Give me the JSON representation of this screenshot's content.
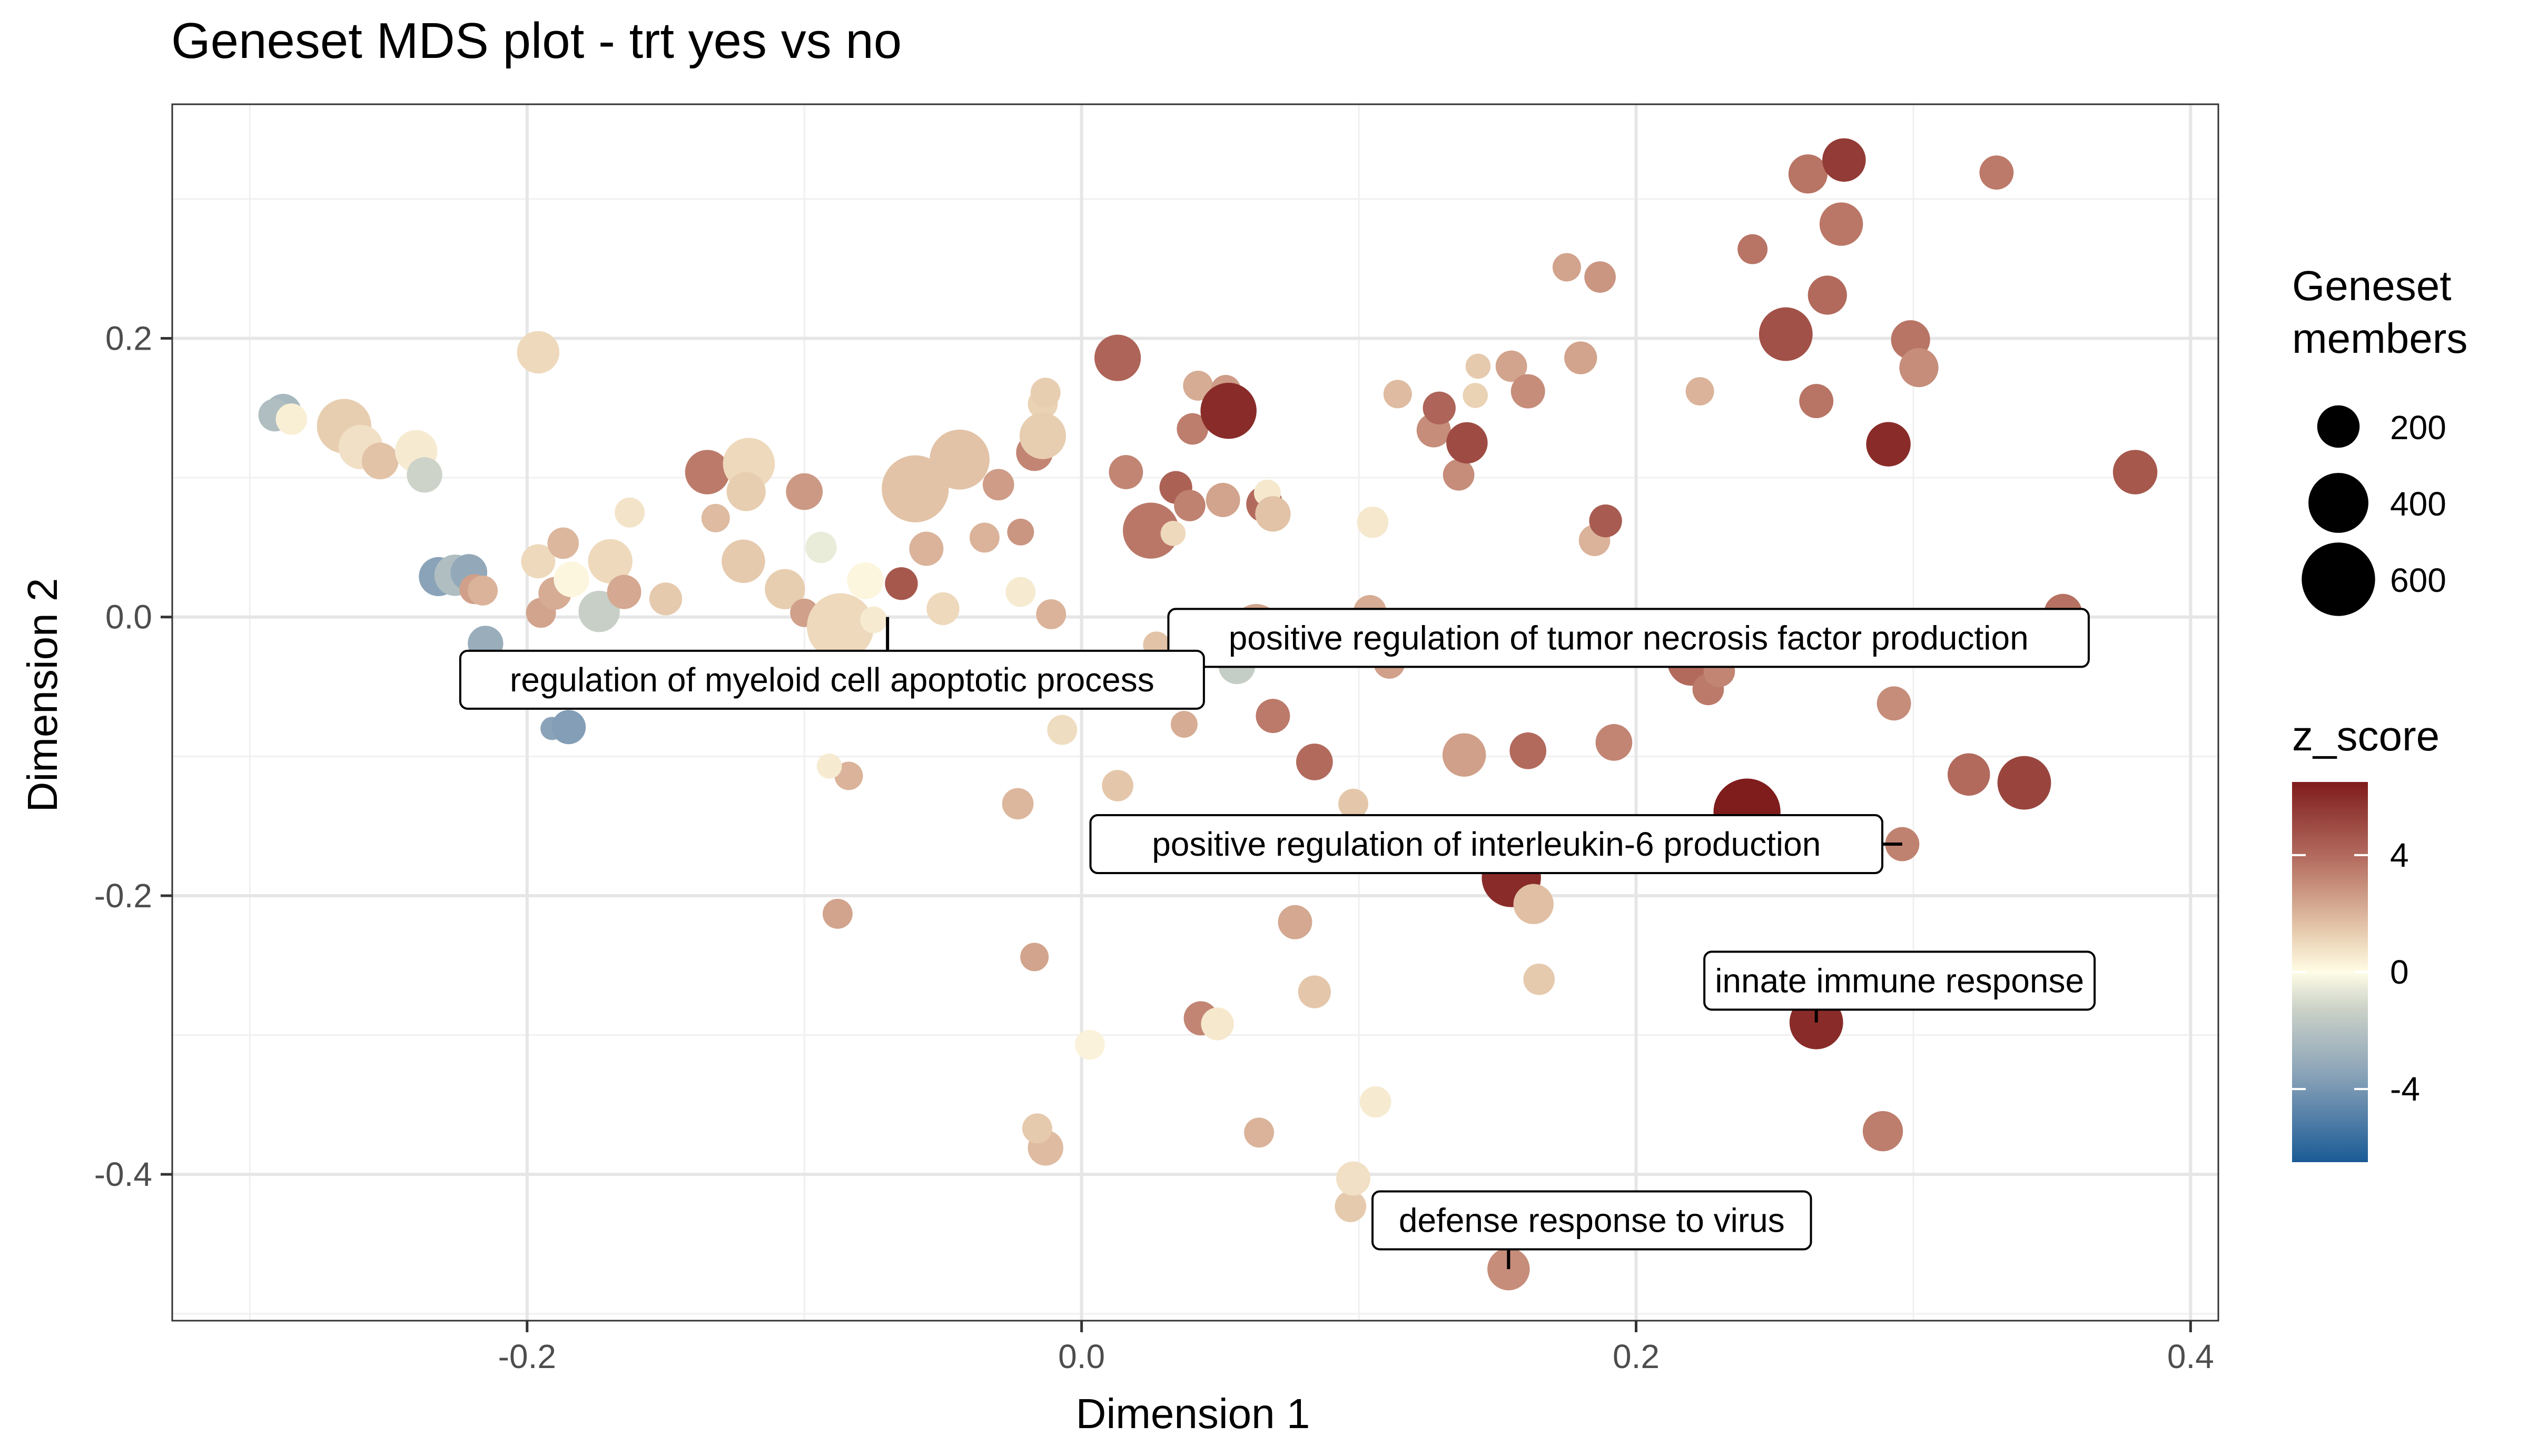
{
  "chart_data": {
    "type": "scatter",
    "title": "Geneset MDS plot - trt yes vs no",
    "xlabel": "Dimension 1",
    "ylabel": "Dimension 2",
    "xlim": [
      -0.328,
      0.41
    ],
    "ylim": [
      -0.505,
      0.368
    ],
    "x_ticks": [
      -0.2,
      0.0,
      0.2,
      0.4
    ],
    "x_tick_labels": [
      "-0.2",
      "0.0",
      "0.2",
      "0.4"
    ],
    "y_ticks": [
      -0.4,
      -0.2,
      0.0,
      0.2
    ],
    "y_tick_labels": [
      "-0.4",
      "-0.2",
      "0.0",
      "0.2"
    ],
    "grid": true,
    "size_legend": {
      "title": [
        "Geneset",
        "members"
      ],
      "entries": [
        {
          "label": "200",
          "value": 200
        },
        {
          "label": "400",
          "value": 400
        },
        {
          "label": "600",
          "value": 600
        }
      ]
    },
    "color_legend": {
      "title": "z_score",
      "range": [
        -6.5,
        6.5
      ],
      "ticks": [
        4,
        0,
        -4
      ],
      "tick_labels": [
        "4",
        "0",
        "-4"
      ],
      "low_color": "#1a5a96",
      "mid_color": "#fffde6",
      "high_color": "#7f1c1c",
      "gradient_stops": [
        "#7f1c1c",
        "#b2665a",
        "#e8c8a8",
        "#fffde6",
        "#c8d0c8",
        "#8aa3b8",
        "#1a5a96"
      ]
    },
    "points": [
      {
        "x": -0.288,
        "y": 0.147,
        "z": -2.5,
        "n": 150
      },
      {
        "x": -0.291,
        "y": 0.145,
        "z": -2.2,
        "n": 120
      },
      {
        "x": -0.285,
        "y": 0.142,
        "z": 0.4,
        "n": 110
      },
      {
        "x": -0.266,
        "y": 0.137,
        "z": 1.3,
        "n": 330
      },
      {
        "x": -0.26,
        "y": 0.122,
        "z": 0.8,
        "n": 220
      },
      {
        "x": -0.253,
        "y": 0.112,
        "z": 1.6,
        "n": 150
      },
      {
        "x": -0.24,
        "y": 0.119,
        "z": 0.5,
        "n": 200
      },
      {
        "x": -0.237,
        "y": 0.102,
        "z": -1.2,
        "n": 140
      },
      {
        "x": -0.232,
        "y": 0.029,
        "z": -3.5,
        "n": 170
      },
      {
        "x": -0.226,
        "y": 0.03,
        "z": -2.2,
        "n": 190
      },
      {
        "x": -0.221,
        "y": 0.032,
        "z": -3.2,
        "n": 150
      },
      {
        "x": -0.219,
        "y": 0.02,
        "z": 2.5,
        "n": 100
      },
      {
        "x": -0.216,
        "y": 0.019,
        "z": 2.0,
        "n": 100
      },
      {
        "x": -0.215,
        "y": -0.019,
        "z": -3.0,
        "n": 140
      },
      {
        "x": -0.196,
        "y": 0.19,
        "z": 1.0,
        "n": 200
      },
      {
        "x": -0.196,
        "y": 0.04,
        "z": 1.0,
        "n": 130
      },
      {
        "x": -0.195,
        "y": 0.003,
        "z": 2.4,
        "n": 100
      },
      {
        "x": -0.191,
        "y": -0.08,
        "z": -3.5,
        "n": 60
      },
      {
        "x": -0.19,
        "y": 0.017,
        "z": 2.2,
        "n": 120
      },
      {
        "x": -0.187,
        "y": 0.053,
        "z": 1.9,
        "n": 110
      },
      {
        "x": -0.185,
        "y": -0.079,
        "z": -3.7,
        "n": 130
      },
      {
        "x": -0.184,
        "y": 0.027,
        "z": 0.2,
        "n": 140
      },
      {
        "x": -0.174,
        "y": 0.004,
        "z": -1.4,
        "n": 190
      },
      {
        "x": -0.17,
        "y": 0.04,
        "z": 1.0,
        "n": 220
      },
      {
        "x": -0.165,
        "y": 0.018,
        "z": 2.3,
        "n": 130
      },
      {
        "x": -0.163,
        "y": 0.075,
        "z": 0.7,
        "n": 100
      },
      {
        "x": -0.15,
        "y": 0.013,
        "z": 1.4,
        "n": 120
      },
      {
        "x": -0.135,
        "y": 0.104,
        "z": 3.5,
        "n": 220
      },
      {
        "x": -0.132,
        "y": 0.071,
        "z": 1.8,
        "n": 90
      },
      {
        "x": -0.122,
        "y": 0.04,
        "z": 1.4,
        "n": 210
      },
      {
        "x": -0.12,
        "y": 0.11,
        "z": 1.0,
        "n": 300
      },
      {
        "x": -0.121,
        "y": 0.09,
        "z": 1.3,
        "n": 170
      },
      {
        "x": -0.107,
        "y": 0.02,
        "z": 1.3,
        "n": 180
      },
      {
        "x": -0.1,
        "y": 0.003,
        "z": 2.5,
        "n": 90
      },
      {
        "x": -0.1,
        "y": 0.09,
        "z": 2.7,
        "n": 150
      },
      {
        "x": -0.094,
        "y": 0.05,
        "z": -0.5,
        "n": 110
      },
      {
        "x": -0.087,
        "y": -0.007,
        "z": 1.0,
        "n": 500
      },
      {
        "x": -0.078,
        "y": 0.026,
        "z": 0.2,
        "n": 150
      },
      {
        "x": -0.075,
        "y": -0.002,
        "z": 0.5,
        "n": 80
      },
      {
        "x": -0.065,
        "y": 0.024,
        "z": 4.6,
        "n": 120
      },
      {
        "x": -0.06,
        "y": 0.092,
        "z": 1.6,
        "n": 500
      },
      {
        "x": -0.056,
        "y": 0.049,
        "z": 2.0,
        "n": 130
      },
      {
        "x": -0.05,
        "y": 0.006,
        "z": 1.0,
        "n": 120
      },
      {
        "x": -0.044,
        "y": 0.113,
        "z": 1.6,
        "n": 400
      },
      {
        "x": -0.035,
        "y": 0.057,
        "z": 2.0,
        "n": 100
      },
      {
        "x": -0.03,
        "y": 0.095,
        "z": 2.6,
        "n": 110
      },
      {
        "x": -0.023,
        "y": -0.134,
        "z": 1.9,
        "n": 110
      },
      {
        "x": -0.022,
        "y": 0.018,
        "z": 0.5,
        "n": 100
      },
      {
        "x": -0.022,
        "y": 0.061,
        "z": 2.8,
        "n": 80
      },
      {
        "x": -0.017,
        "y": 0.118,
        "z": 3.2,
        "n": 150
      },
      {
        "x": -0.014,
        "y": 0.153,
        "z": 1.2,
        "n": 100
      },
      {
        "x": -0.014,
        "y": 0.13,
        "z": 1.3,
        "n": 240
      },
      {
        "x": -0.013,
        "y": 0.161,
        "z": 1.3,
        "n": 100
      },
      {
        "x": -0.013,
        "y": -0.381,
        "z": 1.8,
        "n": 140
      },
      {
        "x": -0.016,
        "y": -0.367,
        "z": 1.4,
        "n": 100
      },
      {
        "x": -0.017,
        "y": -0.244,
        "z": 2.4,
        "n": 90
      },
      {
        "x": -0.011,
        "y": 0.002,
        "z": 2.0,
        "n": 100
      },
      {
        "x": -0.007,
        "y": -0.081,
        "z": 0.9,
        "n": 100
      },
      {
        "x": -0.088,
        "y": -0.213,
        "z": 2.4,
        "n": 100
      },
      {
        "x": -0.084,
        "y": -0.114,
        "z": 2.0,
        "n": 90
      },
      {
        "x": -0.091,
        "y": -0.107,
        "z": 0.5,
        "n": 70
      },
      {
        "x": 0.003,
        "y": -0.307,
        "z": 0.3,
        "n": 100
      },
      {
        "x": 0.013,
        "y": 0.186,
        "z": 4.2,
        "n": 240
      },
      {
        "x": 0.016,
        "y": 0.104,
        "z": 3.2,
        "n": 130
      },
      {
        "x": 0.013,
        "y": -0.121,
        "z": 1.5,
        "n": 110
      },
      {
        "x": 0.025,
        "y": 0.062,
        "z": 3.6,
        "n": 350
      },
      {
        "x": 0.027,
        "y": -0.02,
        "z": 1.6,
        "n": 80
      },
      {
        "x": 0.033,
        "y": 0.06,
        "z": 1.0,
        "n": 70
      },
      {
        "x": 0.034,
        "y": 0.093,
        "z": 4.3,
        "n": 120
      },
      {
        "x": 0.037,
        "y": -0.077,
        "z": 2.2,
        "n": 80
      },
      {
        "x": 0.039,
        "y": 0.08,
        "z": 3.3,
        "n": 110
      },
      {
        "x": 0.04,
        "y": 0.135,
        "z": 3.4,
        "n": 110
      },
      {
        "x": 0.042,
        "y": 0.166,
        "z": 2.2,
        "n": 100
      },
      {
        "x": 0.043,
        "y": -0.288,
        "z": 3.2,
        "n": 130
      },
      {
        "x": 0.049,
        "y": -0.292,
        "z": 0.6,
        "n": 120
      },
      {
        "x": 0.051,
        "y": 0.084,
        "z": 2.4,
        "n": 130
      },
      {
        "x": 0.052,
        "y": 0.163,
        "z": 2.6,
        "n": 100
      },
      {
        "x": 0.053,
        "y": 0.148,
        "z": 6.0,
        "n": 350
      },
      {
        "x": 0.056,
        "y": -0.035,
        "z": -1.5,
        "n": 150
      },
      {
        "x": 0.063,
        "y": -0.008,
        "z": 2.4,
        "n": 260
      },
      {
        "x": 0.064,
        "y": -0.37,
        "z": 2.0,
        "n": 100
      },
      {
        "x": 0.066,
        "y": 0.081,
        "z": 4.0,
        "n": 150
      },
      {
        "x": 0.067,
        "y": 0.089,
        "z": 0.6,
        "n": 80
      },
      {
        "x": 0.069,
        "y": 0.074,
        "z": 1.6,
        "n": 140
      },
      {
        "x": 0.069,
        "y": -0.071,
        "z": 3.5,
        "n": 130
      },
      {
        "x": 0.077,
        "y": -0.219,
        "z": 2.3,
        "n": 130
      },
      {
        "x": 0.084,
        "y": -0.269,
        "z": 1.5,
        "n": 120
      },
      {
        "x": 0.084,
        "y": -0.104,
        "z": 4.0,
        "n": 150
      },
      {
        "x": 0.091,
        "y": -0.019,
        "z": 2.4,
        "n": 90
      },
      {
        "x": 0.097,
        "y": -0.423,
        "z": 1.4,
        "n": 110
      },
      {
        "x": 0.098,
        "y": -0.403,
        "z": 0.8,
        "n": 130
      },
      {
        "x": 0.098,
        "y": -0.134,
        "z": 1.5,
        "n": 100
      },
      {
        "x": 0.104,
        "y": 0.004,
        "z": 2.2,
        "n": 120
      },
      {
        "x": 0.105,
        "y": 0.068,
        "z": 0.6,
        "n": 110
      },
      {
        "x": 0.106,
        "y": -0.348,
        "z": 0.5,
        "n": 110
      },
      {
        "x": 0.111,
        "y": -0.033,
        "z": 2.5,
        "n": 110
      },
      {
        "x": 0.114,
        "y": 0.16,
        "z": 1.8,
        "n": 90
      },
      {
        "x": 0.127,
        "y": 0.134,
        "z": 3.0,
        "n": 130
      },
      {
        "x": 0.129,
        "y": 0.15,
        "z": 4.2,
        "n": 120
      },
      {
        "x": 0.136,
        "y": 0.102,
        "z": 3.0,
        "n": 110
      },
      {
        "x": 0.139,
        "y": 0.125,
        "z": 5.0,
        "n": 190
      },
      {
        "x": 0.138,
        "y": -0.099,
        "z": 2.5,
        "n": 210
      },
      {
        "x": 0.142,
        "y": 0.159,
        "z": 1.2,
        "n": 70
      },
      {
        "x": 0.143,
        "y": 0.18,
        "z": 1.4,
        "n": 70
      },
      {
        "x": 0.146,
        "y": -0.018,
        "z": 5.2,
        "n": 260
      },
      {
        "x": 0.154,
        "y": -0.468,
        "z": 3.0,
        "n": 200
      },
      {
        "x": 0.155,
        "y": -0.187,
        "z": 6.0,
        "n": 390
      },
      {
        "x": 0.155,
        "y": 0.18,
        "z": 2.4,
        "n": 110
      },
      {
        "x": 0.161,
        "y": 0.162,
        "z": 3.0,
        "n": 130
      },
      {
        "x": 0.161,
        "y": -0.096,
        "z": 4.0,
        "n": 150
      },
      {
        "x": 0.163,
        "y": -0.206,
        "z": 1.7,
        "n": 180
      },
      {
        "x": 0.165,
        "y": -0.26,
        "z": 1.4,
        "n": 110
      },
      {
        "x": 0.175,
        "y": 0.251,
        "z": 2.4,
        "n": 90
      },
      {
        "x": 0.18,
        "y": 0.186,
        "z": 2.4,
        "n": 120
      },
      {
        "x": 0.185,
        "y": 0.055,
        "z": 2.0,
        "n": 110
      },
      {
        "x": 0.187,
        "y": 0.244,
        "z": 2.8,
        "n": 110
      },
      {
        "x": 0.189,
        "y": 0.069,
        "z": 4.5,
        "n": 120
      },
      {
        "x": 0.192,
        "y": -0.09,
        "z": 3.2,
        "n": 150
      },
      {
        "x": 0.22,
        "y": -0.032,
        "z": 4.0,
        "n": 260
      },
      {
        "x": 0.223,
        "y": 0.162,
        "z": 2.0,
        "n": 90
      },
      {
        "x": 0.226,
        "y": -0.052,
        "z": 3.5,
        "n": 110
      },
      {
        "x": 0.23,
        "y": -0.039,
        "z": 3.2,
        "n": 110
      },
      {
        "x": 0.24,
        "y": -0.14,
        "z": 6.5,
        "n": 500
      },
      {
        "x": 0.242,
        "y": 0.264,
        "z": 3.7,
        "n": 100
      },
      {
        "x": 0.254,
        "y": 0.203,
        "z": 4.8,
        "n": 320
      },
      {
        "x": 0.262,
        "y": 0.318,
        "z": 3.7,
        "n": 170
      },
      {
        "x": 0.265,
        "y": 0.155,
        "z": 3.7,
        "n": 130
      },
      {
        "x": 0.265,
        "y": -0.291,
        "z": 6.0,
        "n": 320
      },
      {
        "x": 0.269,
        "y": 0.231,
        "z": 4.0,
        "n": 170
      },
      {
        "x": 0.274,
        "y": 0.282,
        "z": 3.6,
        "n": 210
      },
      {
        "x": 0.275,
        "y": 0.328,
        "z": 5.5,
        "n": 210
      },
      {
        "x": 0.289,
        "y": -0.369,
        "z": 3.4,
        "n": 180
      },
      {
        "x": 0.291,
        "y": 0.124,
        "z": 6.0,
        "n": 220
      },
      {
        "x": 0.293,
        "y": -0.062,
        "z": 3.0,
        "n": 130
      },
      {
        "x": 0.296,
        "y": -0.163,
        "z": 3.3,
        "n": 130
      },
      {
        "x": 0.299,
        "y": 0.199,
        "z": 3.7,
        "n": 170
      },
      {
        "x": 0.302,
        "y": 0.179,
        "z": 3.0,
        "n": 170
      },
      {
        "x": 0.32,
        "y": -0.113,
        "z": 4.0,
        "n": 200
      },
      {
        "x": 0.33,
        "y": 0.319,
        "z": 3.5,
        "n": 130
      },
      {
        "x": 0.34,
        "y": -0.119,
        "z": 5.2,
        "n": 320
      },
      {
        "x": 0.354,
        "y": 0.003,
        "z": 3.8,
        "n": 160
      },
      {
        "x": 0.38,
        "y": 0.104,
        "z": 4.6,
        "n": 220
      }
    ],
    "annotations": [
      {
        "label": "positive regulation of tumor necrosis factor production",
        "x": 0.037,
        "y": 0.01
      },
      {
        "label": "regulation of myeloid cell apoptotic process",
        "x": -0.07,
        "y": 0.0
      },
      {
        "label": "positive regulation of interleukin-6 production",
        "x": 0.296,
        "y": -0.163
      },
      {
        "label": "innate immune response",
        "x": 0.265,
        "y": -0.291
      },
      {
        "label": "defense response to virus",
        "x": 0.154,
        "y": -0.468
      }
    ]
  }
}
